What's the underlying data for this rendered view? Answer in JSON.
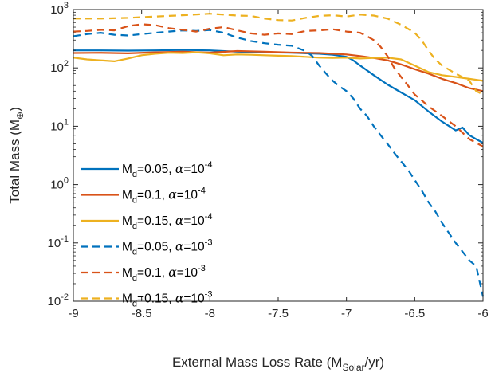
{
  "chart_data": {
    "type": "line",
    "title": "",
    "xlabel": {
      "main": "External Mass Loss Rate (M",
      "sub": "Solar",
      "tail": "/yr)"
    },
    "ylabel": {
      "main": "Total Mass (M",
      "sub": "⊕",
      "tail": ")"
    },
    "xlim": [
      -9,
      -6
    ],
    "ylim": [
      0.01,
      1000
    ],
    "yscale": "log",
    "grid": false,
    "legend_position": "left-center",
    "x_ticks": [
      {
        "v": -9,
        "label": "-9"
      },
      {
        "v": -8.5,
        "label": "-8.5"
      },
      {
        "v": -8,
        "label": "-8"
      },
      {
        "v": -7.5,
        "label": "-7.5"
      },
      {
        "v": -7,
        "label": "-7"
      },
      {
        "v": -6.5,
        "label": "-6.5"
      },
      {
        "v": -6,
        "label": "-6"
      }
    ],
    "y_ticks": [
      {
        "v": 0.01,
        "base": "10",
        "exp": "-2"
      },
      {
        "v": 0.1,
        "base": "10",
        "exp": "-1"
      },
      {
        "v": 1,
        "base": "10",
        "exp": "0"
      },
      {
        "v": 10,
        "base": "10",
        "exp": "1"
      },
      {
        "v": 100,
        "base": "10",
        "exp": "2"
      },
      {
        "v": 1000,
        "base": "10",
        "exp": "3"
      }
    ],
    "series": [
      {
        "name": "M_d=0.05, α=10^-4",
        "legend": {
          "m": "M",
          "msub": "d",
          "val": "=0.05, ",
          "alpha": "α",
          "eq": "=10",
          "exp": "-4"
        },
        "color": "#0072BD",
        "dash": "solid",
        "x": [
          -9,
          -8.8,
          -8.6,
          -8.4,
          -8.2,
          -8.0,
          -7.8,
          -7.6,
          -7.4,
          -7.2,
          -7.1,
          -7.0,
          -6.95,
          -6.9,
          -6.8,
          -6.7,
          -6.6,
          -6.5,
          -6.4,
          -6.3,
          -6.2,
          -6.15,
          -6.1,
          -6.05,
          -6.0
        ],
        "y": [
          200,
          200,
          198,
          200,
          203,
          200,
          190,
          185,
          182,
          175,
          168,
          155,
          135,
          110,
          75,
          52,
          38,
          28,
          18,
          12,
          8.5,
          9.5,
          7,
          6,
          5.2
        ]
      },
      {
        "name": "M_d=0.1, α=10^-4",
        "legend": {
          "m": "M",
          "msub": "d",
          "val": "=0.1, ",
          "alpha": "α",
          "eq": "=10",
          "exp": "-4"
        },
        "color": "#D95319",
        "dash": "solid",
        "x": [
          -9,
          -8.8,
          -8.6,
          -8.4,
          -8.2,
          -8.0,
          -7.8,
          -7.6,
          -7.4,
          -7.2,
          -7.0,
          -6.9,
          -6.8,
          -6.7,
          -6.6,
          -6.5,
          -6.4,
          -6.3,
          -6.2,
          -6.1,
          -6.0
        ],
        "y": [
          180,
          182,
          178,
          185,
          190,
          183,
          195,
          190,
          183,
          180,
          170,
          160,
          148,
          135,
          115,
          95,
          80,
          65,
          55,
          45,
          40
        ]
      },
      {
        "name": "M_d=0.15, α=10^-4",
        "legend": {
          "m": "M",
          "msub": "d",
          "val": "=0.15, ",
          "alpha": "α",
          "eq": "=10",
          "exp": "-4"
        },
        "color": "#EDB120",
        "dash": "solid",
        "x": [
          -9,
          -8.9,
          -8.8,
          -8.7,
          -8.6,
          -8.5,
          -8.4,
          -8.3,
          -8.2,
          -8.1,
          -8.0,
          -7.9,
          -7.8,
          -7.7,
          -7.6,
          -7.5,
          -7.4,
          -7.3,
          -7.2,
          -7.1,
          -7.0,
          -6.9,
          -6.8,
          -6.7,
          -6.6,
          -6.5,
          -6.4,
          -6.3,
          -6.2,
          -6.1,
          -6.0
        ],
        "y": [
          150,
          140,
          135,
          130,
          145,
          165,
          175,
          182,
          180,
          185,
          178,
          165,
          170,
          168,
          165,
          162,
          160,
          155,
          150,
          148,
          150,
          145,
          148,
          150,
          140,
          110,
          85,
          75,
          70,
          65,
          60
        ]
      },
      {
        "name": "M_d=0.05, α=10^-3",
        "legend": {
          "m": "M",
          "msub": "d",
          "val": "=0.05, ",
          "alpha": "α",
          "eq": "=10",
          "exp": "-3"
        },
        "color": "#0072BD",
        "dash": "dashed",
        "x": [
          -9,
          -8.9,
          -8.8,
          -8.7,
          -8.6,
          -8.5,
          -8.4,
          -8.3,
          -8.2,
          -8.1,
          -8.0,
          -7.9,
          -7.8,
          -7.7,
          -7.6,
          -7.5,
          -7.4,
          -7.3,
          -7.25,
          -7.2,
          -7.15,
          -7.1,
          -7.05,
          -7.0,
          -6.95,
          -6.9,
          -6.85,
          -6.8,
          -6.75,
          -6.7,
          -6.65,
          -6.6,
          -6.55,
          -6.5,
          -6.45,
          -6.4,
          -6.35,
          -6.3,
          -6.2,
          -6.1,
          -6.05,
          -6.0
        ],
        "y": [
          350,
          380,
          400,
          370,
          360,
          380,
          400,
          420,
          440,
          430,
          445,
          400,
          330,
          290,
          265,
          250,
          240,
          195,
          160,
          110,
          80,
          60,
          48,
          40,
          30,
          20,
          15,
          10,
          7,
          5,
          3.5,
          2.5,
          1.8,
          1.2,
          0.8,
          0.5,
          0.35,
          0.22,
          0.1,
          0.05,
          0.04,
          0.012
        ]
      },
      {
        "name": "M_d=0.1, α=10^-3",
        "legend": {
          "m": "M",
          "msub": "d",
          "val": "=0.1, ",
          "alpha": "α",
          "eq": "=10",
          "exp": "-3"
        },
        "color": "#D95319",
        "dash": "dashed",
        "x": [
          -9,
          -8.9,
          -8.8,
          -8.7,
          -8.6,
          -8.5,
          -8.4,
          -8.3,
          -8.2,
          -8.1,
          -8.0,
          -7.9,
          -7.8,
          -7.7,
          -7.6,
          -7.5,
          -7.4,
          -7.3,
          -7.2,
          -7.1,
          -7.0,
          -6.9,
          -6.85,
          -6.8,
          -6.75,
          -6.7,
          -6.65,
          -6.6,
          -6.55,
          -6.5,
          -6.45,
          -6.4,
          -6.3,
          -6.2,
          -6.1,
          -6.0
        ],
        "y": [
          420,
          430,
          450,
          440,
          520,
          560,
          540,
          480,
          450,
          420,
          470,
          500,
          440,
          390,
          370,
          390,
          380,
          430,
          440,
          460,
          420,
          400,
          350,
          300,
          230,
          160,
          100,
          70,
          50,
          35,
          28,
          22,
          15,
          10,
          6,
          4.5
        ]
      },
      {
        "name": "M_d=0.15, α=10^-3",
        "legend": {
          "m": "M",
          "msub": "d",
          "val": "=0.15, ",
          "alpha": "α",
          "eq": "=10",
          "exp": "-3"
        },
        "color": "#EDB120",
        "dash": "dashed",
        "x": [
          -9,
          -8.8,
          -8.6,
          -8.4,
          -8.2,
          -8.0,
          -7.9,
          -7.8,
          -7.7,
          -7.6,
          -7.5,
          -7.4,
          -7.3,
          -7.2,
          -7.1,
          -7.0,
          -6.9,
          -6.8,
          -6.7,
          -6.6,
          -6.5,
          -6.45,
          -6.4,
          -6.35,
          -6.3,
          -6.2,
          -6.1,
          -6.05,
          -6.0
        ],
        "y": [
          700,
          700,
          720,
          760,
          800,
          850,
          820,
          790,
          780,
          700,
          660,
          650,
          720,
          780,
          800,
          760,
          820,
          790,
          700,
          550,
          400,
          300,
          200,
          140,
          110,
          80,
          60,
          40,
          35
        ]
      }
    ]
  }
}
